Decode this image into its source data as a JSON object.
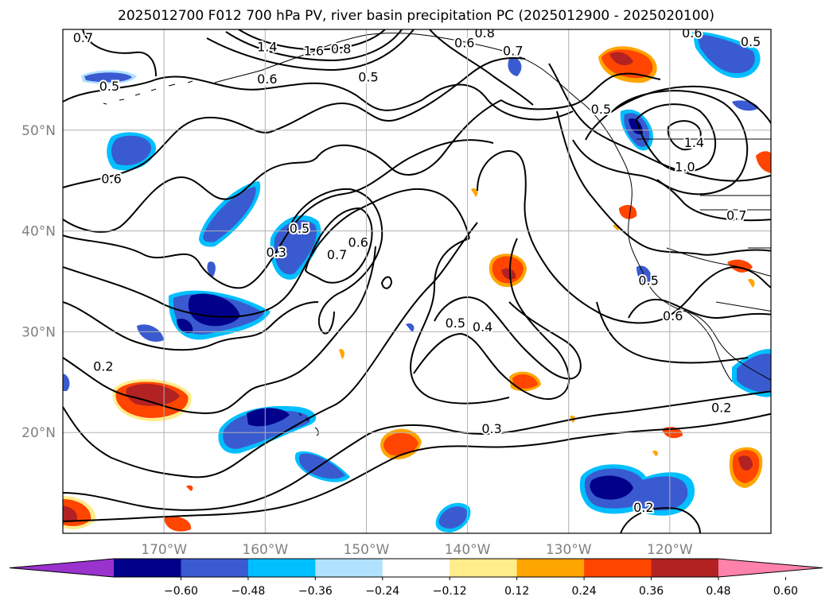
{
  "title": "2025012700 F012 700 hPa PV, river basin precipitation PC (2025012900 - 2025020100)",
  "map": {
    "lon_range": [
      -180,
      -110
    ],
    "lat_range": [
      10,
      60
    ],
    "lat_ticks": [
      {
        "value": 50,
        "label": "50°N"
      },
      {
        "value": 40,
        "label": "40°N"
      },
      {
        "value": 30,
        "label": "30°N"
      },
      {
        "value": 20,
        "label": "20°N"
      }
    ],
    "lon_ticks": [
      {
        "value": -170,
        "label": "170°W"
      },
      {
        "value": -160,
        "label": "160°W"
      },
      {
        "value": -150,
        "label": "150°W"
      },
      {
        "value": -140,
        "label": "140°W"
      },
      {
        "value": -130,
        "label": "130°W"
      },
      {
        "value": -120,
        "label": "120°W"
      }
    ],
    "grid": true
  },
  "colorbar": {
    "extend": "both",
    "colors": [
      "#9a32cd",
      "#00008b",
      "#3a5bd0",
      "#00bfff",
      "#b0e2ff",
      "#ffffff",
      "#ffec8b",
      "#ffa500",
      "#ff4500",
      "#b22222",
      "#ff82ab"
    ],
    "ticks": [
      {
        "value": -0.6,
        "label": "−0.60"
      },
      {
        "value": -0.48,
        "label": "−0.48"
      },
      {
        "value": -0.36,
        "label": "−0.36"
      },
      {
        "value": -0.24,
        "label": "−0.24"
      },
      {
        "value": -0.12,
        "label": "−0.12"
      },
      {
        "value": 0.12,
        "label": "0.12"
      },
      {
        "value": 0.24,
        "label": "0.24"
      },
      {
        "value": 0.36,
        "label": "0.36"
      },
      {
        "value": 0.48,
        "label": "0.48"
      },
      {
        "value": 0.6,
        "label": "0.60"
      }
    ]
  },
  "contour_labels": [
    {
      "text": "0.7",
      "lon": -178.0,
      "lat": 59.2
    },
    {
      "text": "1.4",
      "lon": -159.8,
      "lat": 58.3
    },
    {
      "text": "1.6",
      "lon": -155.2,
      "lat": 57.9
    },
    {
      "text": "0.8",
      "lon": -152.5,
      "lat": 58.1
    },
    {
      "text": "0.6",
      "lon": -159.8,
      "lat": 55.1
    },
    {
      "text": "0.5",
      "lon": -149.8,
      "lat": 55.3
    },
    {
      "text": "0.5",
      "lon": -175.4,
      "lat": 54.4
    },
    {
      "text": "0.6",
      "lon": -140.3,
      "lat": 58.7
    },
    {
      "text": "0.8",
      "lon": -138.3,
      "lat": 59.7
    },
    {
      "text": "0.7",
      "lon": -135.5,
      "lat": 57.9
    },
    {
      "text": "0.6",
      "lon": -117.8,
      "lat": 59.7
    },
    {
      "text": "0.5",
      "lon": -112.0,
      "lat": 58.8
    },
    {
      "text": "0.5",
      "lon": -126.8,
      "lat": 52.1
    },
    {
      "text": "1.4",
      "lon": -117.6,
      "lat": 48.8
    },
    {
      "text": "1.0",
      "lon": -118.5,
      "lat": 46.4
    },
    {
      "text": "0.6",
      "lon": -175.2,
      "lat": 45.2
    },
    {
      "text": "0.5",
      "lon": -156.6,
      "lat": 40.3
    },
    {
      "text": "0.3",
      "lon": -158.9,
      "lat": 37.9
    },
    {
      "text": "0.7",
      "lon": -152.9,
      "lat": 37.7
    },
    {
      "text": "0.6",
      "lon": -150.8,
      "lat": 38.9
    },
    {
      "text": "0.7",
      "lon": -113.4,
      "lat": 41.6
    },
    {
      "text": "0.5",
      "lon": -122.1,
      "lat": 35.1
    },
    {
      "text": "0.6",
      "lon": -119.7,
      "lat": 31.6
    },
    {
      "text": "0.5",
      "lon": -141.2,
      "lat": 30.9
    },
    {
      "text": "0.4",
      "lon": -138.5,
      "lat": 30.5
    },
    {
      "text": "0.2",
      "lon": -176.0,
      "lat": 26.6
    },
    {
      "text": "0.2",
      "lon": -114.9,
      "lat": 22.5
    },
    {
      "text": "0.3",
      "lon": -137.6,
      "lat": 20.4
    },
    {
      "text": "0.2",
      "lon": -122.6,
      "lat": 12.6
    }
  ]
}
